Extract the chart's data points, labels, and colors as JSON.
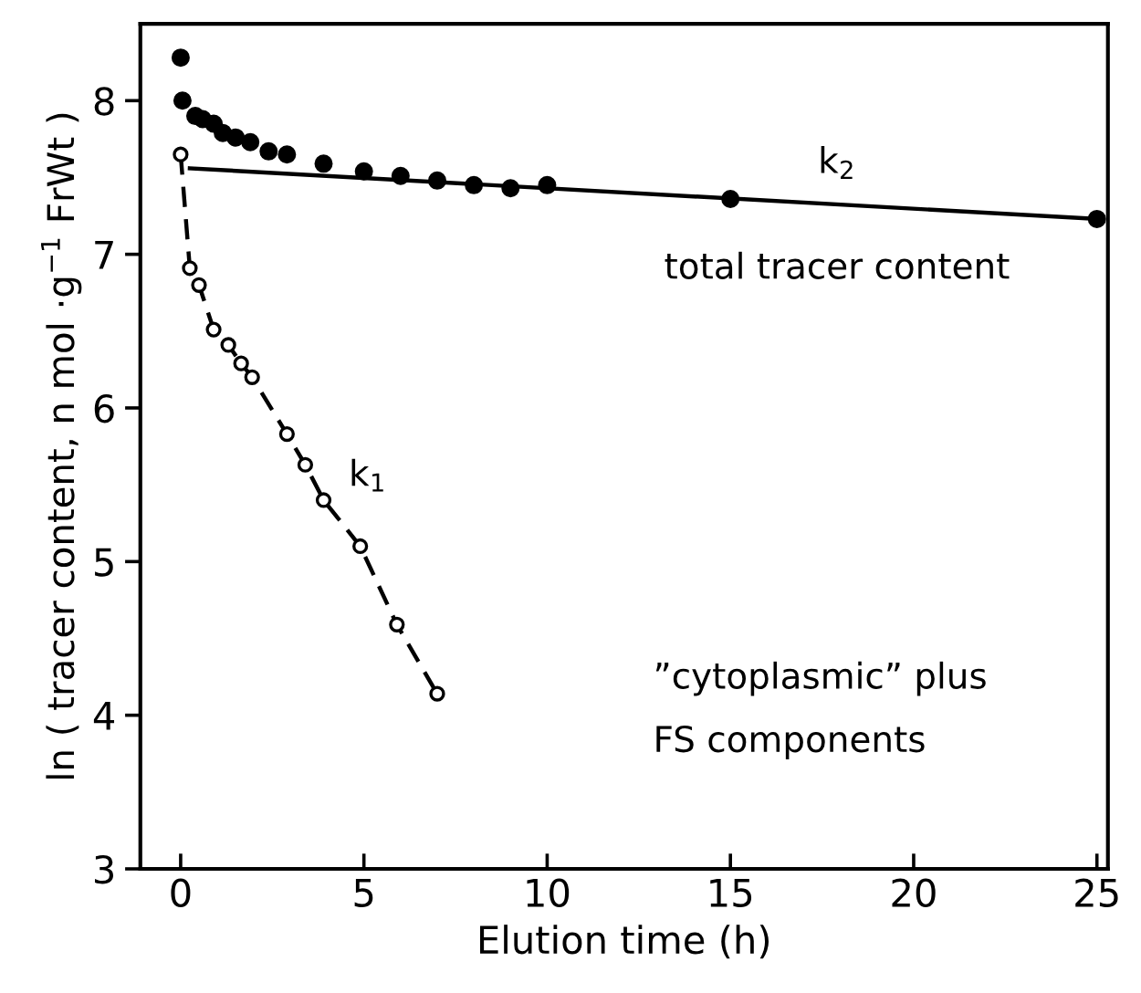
{
  "chart_data": {
    "type": "scatter",
    "xlabel": "Elution time (h)",
    "ylabel": "ln ( tracer content, n mol ·g$^{−1}$ FrWt )",
    "xlim": [
      -1.1,
      25.3
    ],
    "ylim": [
      3,
      8.5
    ],
    "xticks": [
      0,
      5,
      10,
      15,
      20,
      25
    ],
    "yticks": [
      3,
      4,
      5,
      6,
      7,
      8
    ],
    "grid": false,
    "legend": false,
    "series": [
      {
        "color": "#000000",
        "marker": "circle",
        "x": [
          0,
          0.05,
          0.4,
          0.6,
          0.9,
          1.15,
          1.5,
          1.9,
          2.4,
          2.9,
          3.9,
          5,
          6,
          7,
          8,
          9,
          10,
          15,
          25
        ],
        "values": [
          8.28,
          8.0,
          7.9,
          7.88,
          7.85,
          7.79,
          7.76,
          7.73,
          7.67,
          7.65,
          7.59,
          7.54,
          7.51,
          7.48,
          7.45,
          7.43,
          7.45,
          7.36,
          7.23
        ]
      },
      {
        "type": "line",
        "color": "#000000",
        "marker": "none",
        "line_style": "solid",
        "x": [
          0.25,
          25
        ],
        "values": [
          7.56,
          7.23
        ]
      },
      {
        "type": "line",
        "color": "#000000",
        "marker": "circle",
        "line_style": "dashed",
        "x": [
          0,
          0.25,
          0.5,
          0.9,
          1.3,
          1.65,
          1.95,
          2.9,
          3.4,
          3.9,
          4.9,
          5.9,
          7
        ],
        "values": [
          7.65,
          6.91,
          6.8,
          6.51,
          6.41,
          6.29,
          6.2,
          5.83,
          5.63,
          5.4,
          5.1,
          4.59,
          4.14
        ]
      }
    ],
    "annotations": [
      "k$_{1}$",
      "k$_{2}$",
      "total tracer content",
      "”cytoplasmic” plus",
      "FS components"
    ]
  }
}
